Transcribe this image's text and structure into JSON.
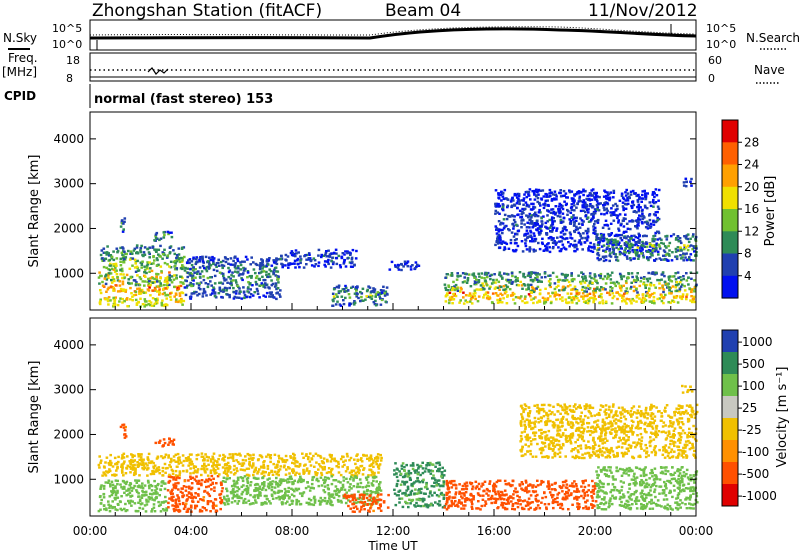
{
  "header": {
    "title": "Zhongshan Station (fitACF)",
    "beam": "Beam 04",
    "date": "11/Nov/2012"
  },
  "strip_panels": {
    "nsky_label": "N.Sky",
    "nsearch_label": "N.Search",
    "freq_label_1": "Freq.",
    "freq_label_2": "[MHz]",
    "nave_label": "Nave",
    "cpid_label": "CPID",
    "cpid_text": "normal (fast stereo) 153",
    "noise_left_ticks": [
      "10^5",
      "10^0"
    ],
    "noise_right_ticks": [
      "10^5",
      "10^0"
    ],
    "freq_left_ticks": [
      "18",
      "8"
    ],
    "freq_right_ticks": [
      "60",
      "0"
    ]
  },
  "colorbars": {
    "power": {
      "label": "Power [dB]",
      "ticks": [
        "28",
        "24",
        "20",
        "16",
        "12",
        "8",
        "4"
      ],
      "colors": [
        "#e00000",
        "#ff6000",
        "#ffa000",
        "#f0e000",
        "#70c030",
        "#2e8b57",
        "#2040b0",
        "#0010f0"
      ]
    },
    "velocity": {
      "label": "Velocity [m s⁻¹]",
      "ticks": [
        "1000",
        "500",
        "100",
        "25",
        "-25",
        "-100",
        "-500",
        "-1000"
      ],
      "colors": [
        "#2040b0",
        "#2e8b57",
        "#6fc04a",
        "#c8c8c0",
        "#f0c000",
        "#ff9000",
        "#ff5000",
        "#e00000"
      ]
    }
  },
  "chart_data": [
    {
      "type": "heatmap",
      "title": "Zhongshan Station (fitACF) Beam 04 11/Nov/2012",
      "quantity": "Power [dB]",
      "xlabel": "Time UT",
      "ylabel": "Slant Range [km]",
      "x_ticks": [
        "00:00",
        "04:00",
        "08:00",
        "12:00",
        "16:00",
        "20:00",
        "00:00"
      ],
      "y_ticks": [
        1000,
        2000,
        3000,
        4000
      ],
      "xlim_hours": [
        0,
        24
      ],
      "ylim_km": [
        180,
        4600
      ],
      "colorscale_range_db": [
        0,
        30
      ],
      "regions": [
        {
          "t0": 0.3,
          "t1": 3.7,
          "r0": 280,
          "r1": 1650,
          "level": "strong",
          "value": 20
        },
        {
          "t0": 1.1,
          "t1": 1.4,
          "r0": 1950,
          "r1": 2250,
          "level": "medium",
          "value": 12
        },
        {
          "t0": 2.5,
          "t1": 3.3,
          "r0": 1750,
          "r1": 1950,
          "level": "medium",
          "value": 14
        },
        {
          "t0": 3.7,
          "t1": 7.5,
          "r0": 450,
          "r1": 1400,
          "level": "medium",
          "value": 12
        },
        {
          "t0": 7.5,
          "t1": 10.5,
          "r0": 1150,
          "r1": 1550,
          "level": "weak",
          "value": 8
        },
        {
          "t0": 9.5,
          "t1": 11.8,
          "r0": 300,
          "r1": 750,
          "level": "medium",
          "value": 14
        },
        {
          "t0": 11.8,
          "t1": 13.0,
          "r0": 1100,
          "r1": 1300,
          "level": "weak",
          "value": 6
        },
        {
          "t0": 14.0,
          "t1": 24.0,
          "r0": 350,
          "r1": 1050,
          "level": "strong",
          "value": 20
        },
        {
          "t0": 16.0,
          "t1": 22.5,
          "r0": 1500,
          "r1": 2900,
          "level": "weak",
          "value": 6
        },
        {
          "t0": 20.0,
          "t1": 24.0,
          "r0": 1300,
          "r1": 1900,
          "level": "medium",
          "value": 14
        },
        {
          "t0": 23.4,
          "t1": 23.8,
          "r0": 2950,
          "r1": 3150,
          "level": "weak",
          "value": 6
        }
      ]
    },
    {
      "type": "heatmap",
      "quantity": "Velocity [m s⁻¹]",
      "xlabel": "Time UT",
      "ylabel": "Slant Range [km]",
      "x_ticks": [
        "00:00",
        "04:00",
        "08:00",
        "12:00",
        "16:00",
        "20:00",
        "00:00"
      ],
      "y_ticks": [
        1000,
        2000,
        3000,
        4000
      ],
      "xlim_hours": [
        0,
        24
      ],
      "ylim_km": [
        180,
        4600
      ],
      "colorscale_ticks": [
        1000,
        500,
        100,
        25,
        -25,
        -100,
        -500,
        -1000
      ],
      "regions": [
        {
          "t0": 0.3,
          "t1": 3.0,
          "r0": 300,
          "r1": 1000,
          "level": "green",
          "value": 300
        },
        {
          "t0": 3.0,
          "t1": 5.2,
          "r0": 300,
          "r1": 1100,
          "level": "orange",
          "value": -150
        },
        {
          "t0": 1.1,
          "t1": 1.4,
          "r0": 1950,
          "r1": 2250,
          "level": "orange",
          "value": -150
        },
        {
          "t0": 2.5,
          "t1": 3.3,
          "r0": 1750,
          "r1": 1950,
          "level": "orange",
          "value": -300
        },
        {
          "t0": 0.3,
          "t1": 11.5,
          "r0": 1100,
          "r1": 1600,
          "level": "grey",
          "value": 0
        },
        {
          "t0": 5.2,
          "t1": 11.5,
          "r0": 450,
          "r1": 1100,
          "level": "green",
          "value": 300
        },
        {
          "t0": 10.0,
          "t1": 11.8,
          "r0": 300,
          "r1": 700,
          "level": "orange",
          "value": -150
        },
        {
          "t0": 12.0,
          "t1": 14.0,
          "r0": 400,
          "r1": 1400,
          "level": "blue",
          "value": 600
        },
        {
          "t0": 14.0,
          "t1": 20.0,
          "r0": 350,
          "r1": 1000,
          "level": "orange",
          "value": -300
        },
        {
          "t0": 17.0,
          "t1": 24.0,
          "r0": 1500,
          "r1": 2700,
          "level": "grey",
          "value": 0
        },
        {
          "t0": 20.0,
          "t1": 24.0,
          "r0": 350,
          "r1": 1300,
          "level": "green",
          "value": 300
        },
        {
          "t0": 23.4,
          "t1": 23.8,
          "r0": 2950,
          "r1": 3150,
          "level": "grey",
          "value": 0
        }
      ]
    }
  ]
}
